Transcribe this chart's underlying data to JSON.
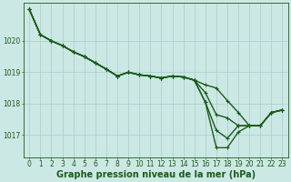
{
  "title": "Graphe pression niveau de la mer (hPa)",
  "background_color": "#cce8e4",
  "grid_color_v": "#a8cccc",
  "grid_color_h": "#a8cccc",
  "line_color": "#1a5c1a",
  "marker_color": "#1a5c1a",
  "x_ticks": [
    0,
    1,
    2,
    3,
    4,
    5,
    6,
    7,
    8,
    9,
    10,
    11,
    12,
    13,
    14,
    15,
    16,
    17,
    18,
    19,
    20,
    21,
    22,
    23
  ],
  "y_ticks": [
    1017,
    1018,
    1019,
    1020
  ],
  "ylim": [
    1016.3,
    1021.2
  ],
  "xlim": [
    -0.5,
    23.5
  ],
  "series": [
    [
      1021.0,
      1020.2,
      1020.0,
      1019.85,
      1019.65,
      1019.5,
      1019.3,
      1019.1,
      1018.88,
      1019.0,
      1018.92,
      1018.88,
      1018.82,
      1018.88,
      1018.85,
      1018.75,
      1018.6,
      1018.5,
      1018.1,
      1017.72,
      1017.3,
      1017.3,
      1017.72,
      1017.8
    ],
    [
      1021.0,
      1020.2,
      1020.0,
      1019.85,
      1019.65,
      1019.5,
      1019.3,
      1019.1,
      1018.88,
      1019.0,
      1018.92,
      1018.88,
      1018.82,
      1018.88,
      1018.85,
      1018.75,
      1018.35,
      1017.65,
      1017.55,
      1017.3,
      1017.3,
      1017.3,
      1017.72,
      1017.8
    ],
    [
      1021.0,
      1020.2,
      1020.0,
      1019.85,
      1019.65,
      1019.5,
      1019.3,
      1019.1,
      1018.88,
      1019.0,
      1018.92,
      1018.88,
      1018.82,
      1018.88,
      1018.85,
      1018.75,
      1018.05,
      1017.15,
      1016.9,
      1017.3,
      1017.3,
      1017.3,
      1017.72,
      1017.8
    ],
    [
      1021.0,
      1020.2,
      1020.0,
      1019.85,
      1019.65,
      1019.5,
      1019.3,
      1019.1,
      1018.88,
      1019.0,
      1018.92,
      1018.88,
      1018.82,
      1018.88,
      1018.85,
      1018.75,
      1018.05,
      1016.6,
      1016.6,
      1017.1,
      1017.3,
      1017.3,
      1017.72,
      1017.8
    ]
  ],
  "series_lw": [
    1.0,
    1.0,
    1.0,
    1.0
  ],
  "font_color": "#1a5c1a",
  "tick_fontsize": 5.5,
  "label_fontsize": 7.0,
  "figsize": [
    3.2,
    2.0
  ],
  "dpi": 100
}
